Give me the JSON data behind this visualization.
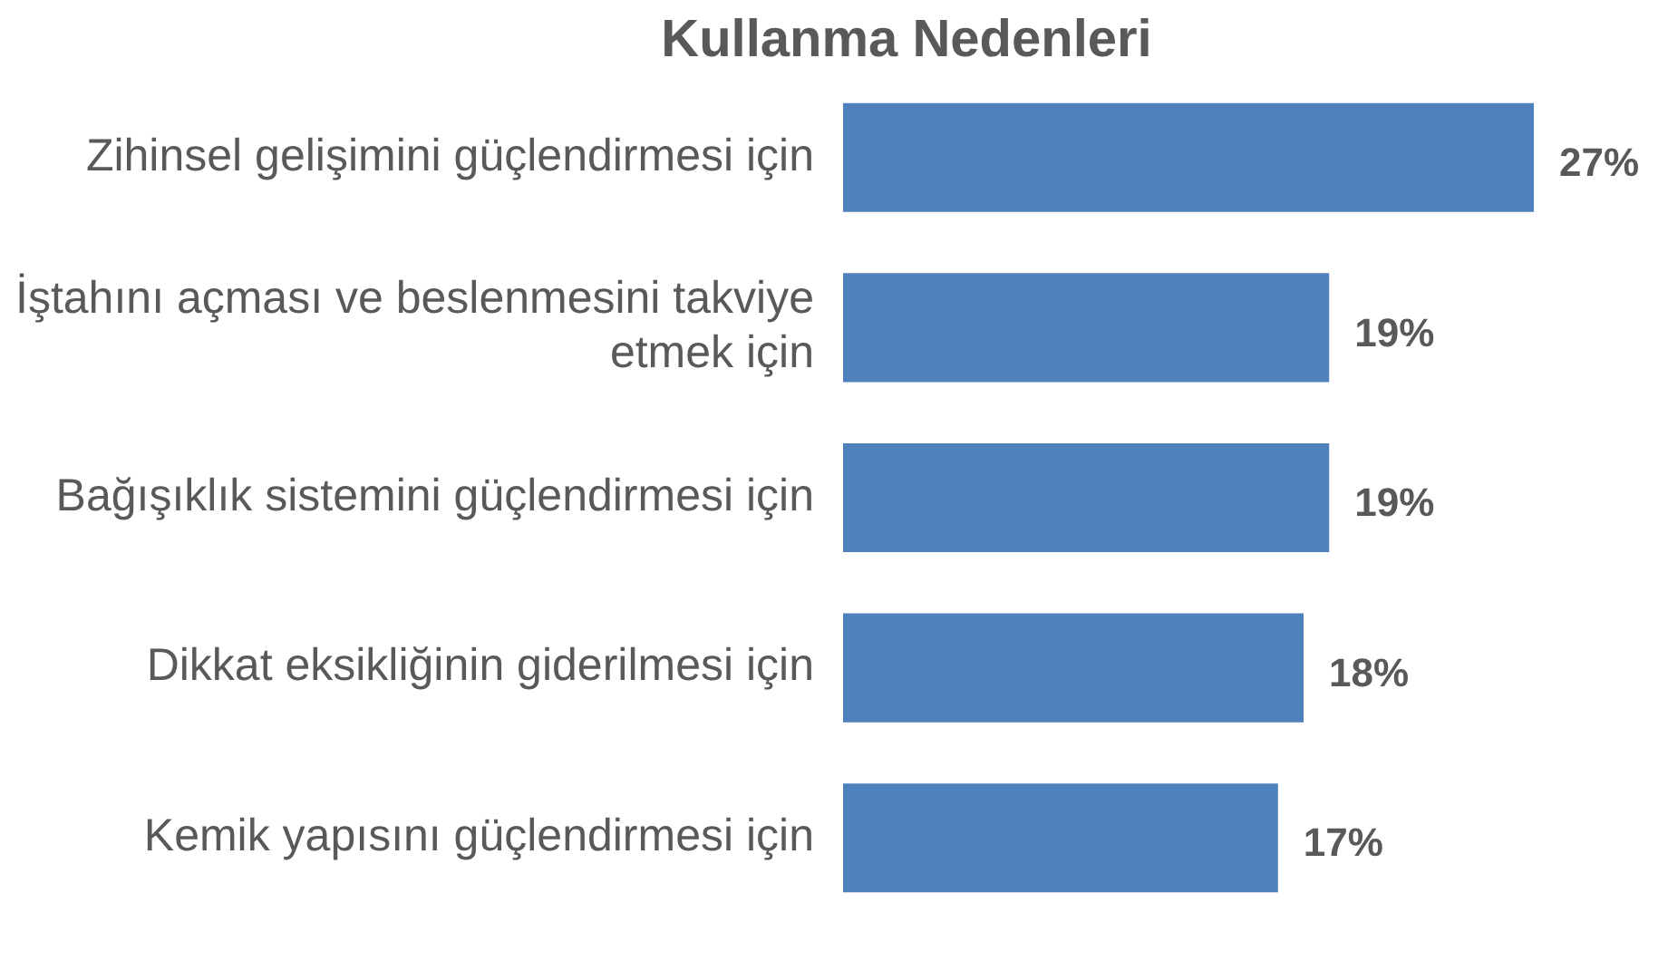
{
  "chart_data": {
    "type": "bar",
    "title": "Kullanma Nedenleri",
    "orientation": "horizontal",
    "categories": [
      "Zihinsel gelişimini güçlendirmesi için",
      "İştahını açması ve beslenmesini takviye etmek için",
      "Bağışıklık sistemini güçlendirmesi için",
      "Dikkat eksikliğinin giderilmesi için",
      "Kemik yapısını güçlendirmesi için"
    ],
    "values": [
      27,
      19,
      19,
      18,
      17
    ],
    "value_labels": [
      "27%",
      "19%",
      "19%",
      "18%",
      "17%"
    ],
    "color": "#4f81bd",
    "tick_labels": "y"
  }
}
